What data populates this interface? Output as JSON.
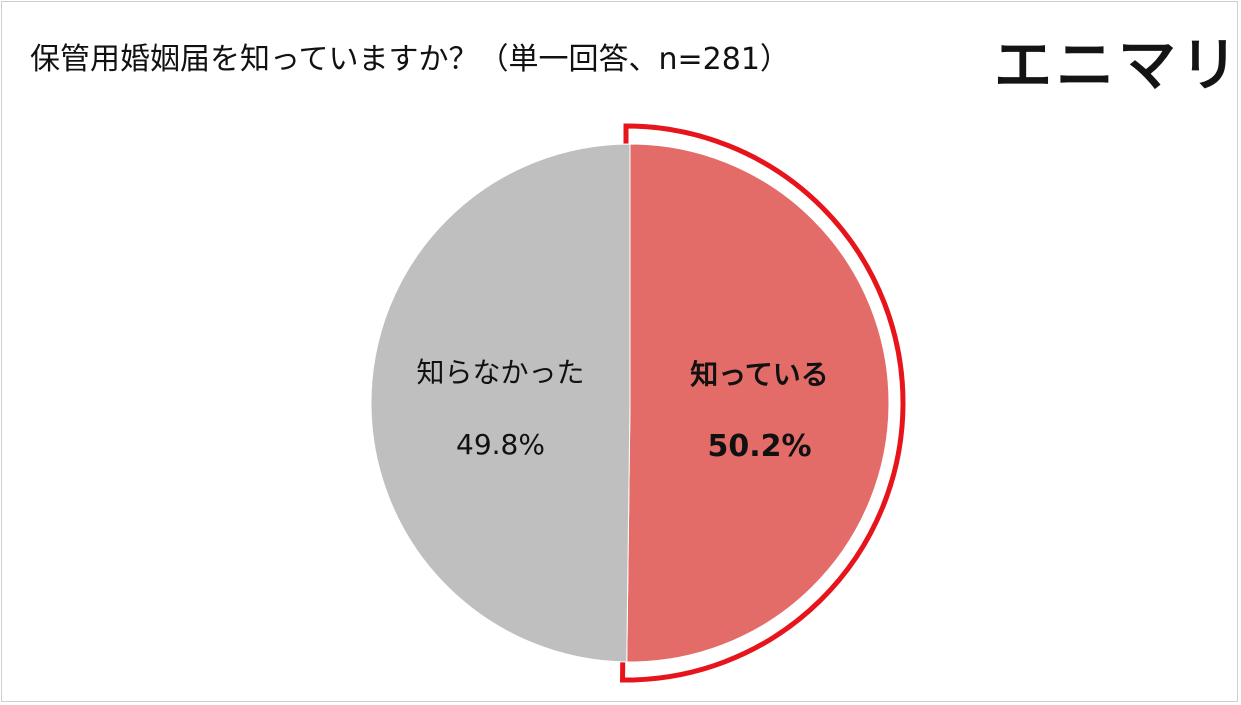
{
  "title": "保管用婚姻届を知っていますか？（単一回答、n=281）",
  "logo_text": "エニマリ",
  "chart_data": {
    "type": "pie",
    "title": "保管用婚姻届を知っていますか？（単一回答、n=281）",
    "slices": [
      {
        "label": "知っている",
        "value": 50.2,
        "value_text": "50.2%",
        "color": "#e46c68",
        "highlighted": true
      },
      {
        "label": "知らなかった",
        "value": 49.8,
        "value_text": "49.8%",
        "color": "#bfbfbf",
        "highlighted": false
      }
    ],
    "highlight_color": "#e8141c",
    "legend": "none"
  }
}
